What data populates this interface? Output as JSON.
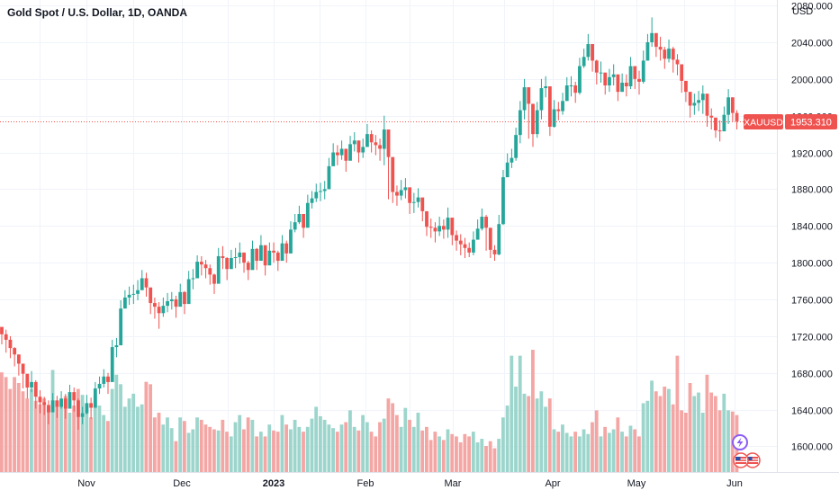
{
  "header": {
    "title": "Gold Spot / U.S. Dollar, 1D, OANDA",
    "currency": "USD"
  },
  "price_label": {
    "symbol": "XAUUSD",
    "value": "1953.310"
  },
  "colors": {
    "up": "#26a69a",
    "down": "#ef5350",
    "vol_up": "#9cd5cc",
    "vol_down": "#f4a6a4",
    "price_line": "#ef5350"
  },
  "chart_data": {
    "type": "candlestick",
    "title": "Gold Spot / U.S. Dollar, 1D, OANDA",
    "y_unit": "USD",
    "ylim": [
      1572,
      2086
    ],
    "y_ticks": [
      1600,
      1640,
      1680,
      1720,
      1760,
      1800,
      1840,
      1880,
      1920,
      1960,
      2000,
      2040,
      2080
    ],
    "y_tick_labels": [
      "1600.000",
      "1640.000",
      "1680.000",
      "1720.000",
      "1760.000",
      "1800.000",
      "1840.000",
      "1880.000",
      "1920.000",
      "1960.000",
      "2000.000",
      "2040.000",
      "2080.000"
    ],
    "x_labels": [
      "Nov",
      "Dec",
      "2023",
      "Feb",
      "Mar",
      "Apr",
      "May",
      "Jun"
    ],
    "last_price": 1953.31,
    "grid": true,
    "series": [
      {
        "name": "XAUUSD",
        "close": [
          1722,
          1716,
          1707,
          1700,
          1690,
          1679,
          1664,
          1670,
          1654,
          1648,
          1645,
          1637,
          1650,
          1643,
          1652,
          1641,
          1659,
          1650,
          1632,
          1636,
          1647,
          1642,
          1663,
          1668,
          1676,
          1670,
          1708,
          1710,
          1750,
          1762,
          1765,
          1766,
          1770,
          1783,
          1773,
          1756,
          1752,
          1745,
          1753,
          1758,
          1760,
          1752,
          1768,
          1755,
          1782,
          1783,
          1801,
          1798,
          1794,
          1787,
          1777,
          1807,
          1805,
          1793,
          1805,
          1806,
          1811,
          1800,
          1792,
          1815,
          1802,
          1819,
          1797,
          1813,
          1811,
          1802,
          1821,
          1810,
          1836,
          1844,
          1853,
          1838,
          1865,
          1870,
          1877,
          1878,
          1880,
          1905,
          1920,
          1917,
          1924,
          1911,
          1929,
          1933,
          1920,
          1926,
          1940,
          1931,
          1928,
          1924,
          1945,
          1915,
          1877,
          1873,
          1879,
          1882,
          1865,
          1866,
          1871,
          1856,
          1839,
          1838,
          1834,
          1840,
          1836,
          1849,
          1830,
          1824,
          1820,
          1816,
          1811,
          1825,
          1837,
          1850,
          1838,
          1814,
          1809,
          1842,
          1893,
          1909,
          1914,
          1939,
          1966,
          1991,
          1973,
          1940,
          1966,
          1990,
          1992,
          1948,
          1967,
          1965,
          1976,
          1993,
          1993,
          1985,
          2014,
          2024,
          2038,
          2020,
          2007,
          2007,
          1993,
          2002,
          2005,
          1986,
          1996,
          1992,
          2014,
          2000,
          1997,
          2020,
          2040,
          2050,
          2035,
          2032,
          2022,
          2033,
          2021,
          2016,
          1998,
          1986,
          1971,
          1974,
          1977,
          1984,
          1960,
          1958,
          1944,
          1943,
          1961,
          1980,
          1963,
          1954
        ],
        "high": [
          1730,
          1727,
          1720,
          1708,
          1700,
          1690,
          1674,
          1682,
          1672,
          1661,
          1654,
          1650,
          1658,
          1655,
          1660,
          1657,
          1667,
          1664,
          1652,
          1643,
          1656,
          1653,
          1670,
          1676,
          1684,
          1680,
          1716,
          1718,
          1759,
          1770,
          1774,
          1776,
          1781,
          1792,
          1789,
          1768,
          1762,
          1757,
          1762,
          1767,
          1768,
          1764,
          1777,
          1769,
          1791,
          1793,
          1808,
          1807,
          1803,
          1798,
          1788,
          1816,
          1818,
          1806,
          1814,
          1816,
          1822,
          1811,
          1802,
          1824,
          1816,
          1830,
          1812,
          1822,
          1822,
          1813,
          1830,
          1824,
          1845,
          1853,
          1862,
          1852,
          1874,
          1878,
          1886,
          1887,
          1889,
          1914,
          1930,
          1928,
          1933,
          1924,
          1938,
          1942,
          1933,
          1935,
          1951,
          1944,
          1939,
          1935,
          1960,
          1933,
          1891,
          1884,
          1890,
          1892,
          1878,
          1876,
          1881,
          1869,
          1851,
          1848,
          1844,
          1850,
          1847,
          1860,
          1843,
          1835,
          1831,
          1827,
          1822,
          1834,
          1847,
          1859,
          1852,
          1827,
          1819,
          1852,
          1901,
          1919,
          1924,
          1947,
          1976,
          2000,
          1990,
          1956,
          1975,
          2000,
          2003,
          1966,
          1977,
          1975,
          1985,
          2002,
          2003,
          1997,
          2023,
          2033,
          2049,
          2036,
          2021,
          2019,
          2005,
          2011,
          2016,
          2000,
          2006,
          2005,
          2024,
          2013,
          2009,
          2031,
          2049,
          2067,
          2049,
          2046,
          2035,
          2043,
          2035,
          2027,
          2013,
          1996,
          1983,
          1984,
          1987,
          1993,
          1974,
          1968,
          1956,
          1955,
          1970,
          1989,
          1980,
          1966
        ],
        "low": [
          1711,
          1702,
          1696,
          1687,
          1677,
          1663,
          1652,
          1659,
          1641,
          1636,
          1634,
          1624,
          1638,
          1631,
          1641,
          1630,
          1646,
          1638,
          1618,
          1624,
          1635,
          1630,
          1651,
          1657,
          1664,
          1657,
          1695,
          1697,
          1739,
          1752,
          1754,
          1755,
          1759,
          1771,
          1763,
          1744,
          1739,
          1728,
          1741,
          1746,
          1749,
          1740,
          1756,
          1744,
          1770,
          1771,
          1790,
          1786,
          1783,
          1776,
          1766,
          1796,
          1793,
          1781,
          1794,
          1794,
          1799,
          1789,
          1781,
          1803,
          1792,
          1808,
          1786,
          1802,
          1800,
          1791,
          1810,
          1800,
          1825,
          1833,
          1842,
          1827,
          1854,
          1859,
          1866,
          1867,
          1869,
          1894,
          1908,
          1906,
          1912,
          1899,
          1918,
          1921,
          1909,
          1914,
          1928,
          1920,
          1917,
          1911,
          1906,
          1869,
          1865,
          1862,
          1868,
          1870,
          1853,
          1854,
          1860,
          1845,
          1829,
          1827,
          1822,
          1829,
          1826,
          1827,
          1819,
          1813,
          1808,
          1805,
          1806,
          1808,
          1826,
          1835,
          1813,
          1805,
          1802,
          1808,
          1841,
          1898,
          1903,
          1911,
          1930,
          1956,
          1935,
          1926,
          1936,
          1956,
          1980,
          1938,
          1947,
          1955,
          1961,
          1980,
          1981,
          1974,
          1983,
          2012,
          2020,
          2008,
          1994,
          1996,
          1983,
          1986,
          1993,
          1976,
          1986,
          1981,
          1989,
          1989,
          1983,
          1995,
          2020,
          2035,
          2024,
          2020,
          2011,
          2018,
          2007,
          2004,
          1985,
          1975,
          1958,
          1961,
          1965,
          1962,
          1948,
          1945,
          1936,
          1932,
          1944,
          1951,
          1954,
          1945
        ],
        "volume": [
          0.84,
          0.8,
          0.7,
          0.8,
          0.75,
          0.68,
          0.62,
          0.7,
          0.6,
          0.57,
          0.62,
          0.55,
          0.86,
          0.6,
          0.55,
          0.64,
          0.5,
          0.56,
          0.7,
          0.65,
          0.5,
          0.46,
          0.64,
          0.56,
          0.48,
          0.43,
          0.7,
          0.82,
          0.74,
          0.55,
          0.62,
          0.66,
          0.55,
          0.57,
          0.76,
          0.74,
          0.46,
          0.5,
          0.4,
          0.46,
          0.37,
          0.26,
          0.46,
          0.43,
          0.33,
          0.36,
          0.46,
          0.44,
          0.4,
          0.38,
          0.36,
          0.35,
          0.44,
          0.34,
          0.3,
          0.42,
          0.48,
          0.36,
          0.46,
          0.44,
          0.3,
          0.34,
          0.3,
          0.4,
          0.35,
          0.34,
          0.48,
          0.4,
          0.36,
          0.44,
          0.38,
          0.34,
          0.38,
          0.45,
          0.55,
          0.47,
          0.44,
          0.4,
          0.37,
          0.34,
          0.4,
          0.42,
          0.52,
          0.38,
          0.35,
          0.48,
          0.42,
          0.34,
          0.3,
          0.42,
          0.45,
          0.62,
          0.58,
          0.48,
          0.38,
          0.54,
          0.44,
          0.38,
          0.5,
          0.35,
          0.38,
          0.27,
          0.34,
          0.3,
          0.27,
          0.36,
          0.32,
          0.3,
          0.25,
          0.32,
          0.3,
          0.34,
          0.25,
          0.28,
          0.22,
          0.26,
          0.2,
          0.28,
          0.46,
          0.56,
          0.98,
          0.72,
          0.98,
          0.66,
          0.64,
          1.03,
          0.62,
          0.68,
          0.55,
          0.62,
          0.36,
          0.34,
          0.4,
          0.33,
          0.3,
          0.34,
          0.3,
          0.36,
          0.32,
          0.42,
          0.52,
          0.3,
          0.38,
          0.33,
          0.36,
          0.46,
          0.34,
          0.3,
          0.39,
          0.36,
          0.3,
          0.58,
          0.6,
          0.77,
          0.68,
          0.64,
          0.72,
          0.7,
          0.57,
          0.98,
          0.52,
          0.5,
          0.75,
          0.64,
          0.67,
          0.5,
          0.82,
          0.67,
          0.64,
          0.52,
          0.66,
          0.52,
          0.51,
          0.48
        ]
      }
    ]
  }
}
